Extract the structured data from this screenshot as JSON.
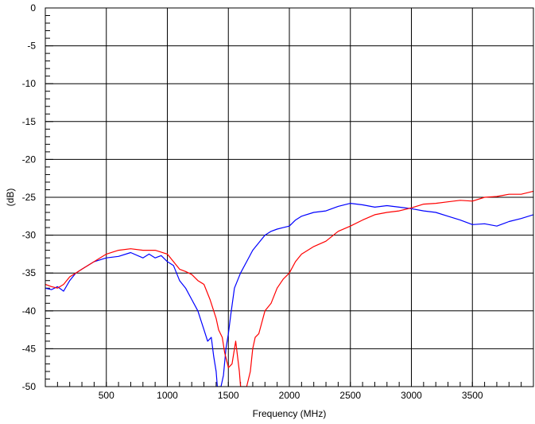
{
  "chart_data": {
    "type": "line",
    "title": "",
    "xlabel": "Frequency (MHz)",
    "ylabel": "(dB)",
    "xlim": [
      0,
      4000
    ],
    "ylim": [
      -50,
      0
    ],
    "x_ticks": [
      500,
      1000,
      1500,
      2000,
      2500,
      3000,
      3500
    ],
    "x_tick_labels": [
      "500",
      "1000",
      "1500",
      "2000",
      "2500",
      "3000",
      "3500"
    ],
    "y_ticks": [
      0,
      -5,
      -10,
      -15,
      -20,
      -25,
      -30,
      -35,
      -40,
      -45,
      -50
    ],
    "y_tick_labels": [
      "0",
      "-5",
      "-10",
      "-15",
      "-20",
      "-25",
      "-30",
      "-35",
      "-40",
      "-45",
      "-50"
    ],
    "grid": true,
    "legend": "none",
    "series": [
      {
        "color": "#0000ff",
        "x": [
          0,
          50,
          100,
          150,
          200,
          250,
          300,
          400,
          500,
          600,
          700,
          800,
          850,
          900,
          950,
          1000,
          1050,
          1100,
          1150,
          1200,
          1250,
          1300,
          1330,
          1360,
          1380,
          1400,
          1410,
          1440,
          1460,
          1480,
          1500,
          1520,
          1550,
          1600,
          1650,
          1700,
          1750,
          1800,
          1850,
          1900,
          1950,
          2000,
          2050,
          2100,
          2200,
          2300,
          2400,
          2500,
          2600,
          2700,
          2800,
          2900,
          3000,
          3100,
          3200,
          3300,
          3400,
          3500,
          3600,
          3700,
          3800,
          3900,
          4000
        ],
        "y": [
          -37,
          -37.2,
          -36.8,
          -37.4,
          -36,
          -35,
          -34.5,
          -33.5,
          -33,
          -32.8,
          -32.3,
          -33,
          -32.5,
          -33,
          -32.7,
          -33.5,
          -34,
          -36,
          -37,
          -38.5,
          -40,
          -42.5,
          -44,
          -43.5,
          -46,
          -48,
          -50,
          -50,
          -48.5,
          -45,
          -43,
          -40.5,
          -37,
          -35,
          -33.5,
          -32,
          -31,
          -30,
          -29.5,
          -29.2,
          -29,
          -28.8,
          -28,
          -27.5,
          -27,
          -26.8,
          -26.2,
          -25.8,
          -26,
          -26.3,
          -26.1,
          -26.3,
          -26.5,
          -26.8,
          -27,
          -27.5,
          -28,
          -28.6,
          -28.5,
          -28.8,
          -28.2,
          -27.8,
          -27.3
        ]
      },
      {
        "color": "#ff0000",
        "x": [
          0,
          50,
          100,
          150,
          200,
          250,
          300,
          400,
          500,
          600,
          700,
          800,
          900,
          1000,
          1050,
          1100,
          1150,
          1200,
          1250,
          1300,
          1350,
          1400,
          1420,
          1450,
          1470,
          1500,
          1530,
          1560,
          1590,
          1600,
          1620,
          1650,
          1680,
          1700,
          1720,
          1750,
          1800,
          1850,
          1900,
          1950,
          2000,
          2050,
          2100,
          2200,
          2300,
          2400,
          2500,
          2600,
          2700,
          2800,
          2900,
          3000,
          3100,
          3200,
          3300,
          3400,
          3500,
          3600,
          3700,
          3800,
          3900,
          4000
        ],
        "y": [
          -36.5,
          -36.8,
          -37,
          -36.5,
          -35.5,
          -35,
          -34.5,
          -33.5,
          -32.5,
          -32,
          -31.8,
          -32,
          -32,
          -32.5,
          -33.5,
          -34.5,
          -34.8,
          -35.2,
          -36,
          -36.5,
          -38.5,
          -41,
          -42.5,
          -43.5,
          -45.5,
          -47.5,
          -47,
          -44,
          -48,
          -50,
          -50,
          -50,
          -48,
          -45,
          -43.5,
          -43,
          -40,
          -39,
          -37,
          -35.8,
          -35,
          -33.5,
          -32.5,
          -31.5,
          -30.8,
          -29.5,
          -28.8,
          -28,
          -27.3,
          -27,
          -26.8,
          -26.4,
          -25.9,
          -25.8,
          -25.6,
          -25.4,
          -25.5,
          -25,
          -24.9,
          -24.6,
          -24.6,
          -24.2
        ]
      }
    ]
  }
}
